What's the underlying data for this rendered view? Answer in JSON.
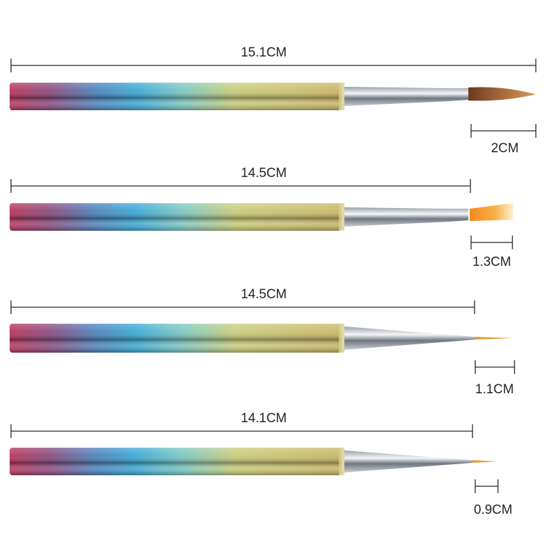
{
  "brushes": [
    {
      "length": "15.1CM",
      "tip": "2CM"
    },
    {
      "length": "14.5CM",
      "tip": "1.3CM"
    },
    {
      "length": "14.5CM",
      "tip": "1.1CM"
    },
    {
      "length": "14.1CM",
      "tip": "0.9CM"
    }
  ]
}
